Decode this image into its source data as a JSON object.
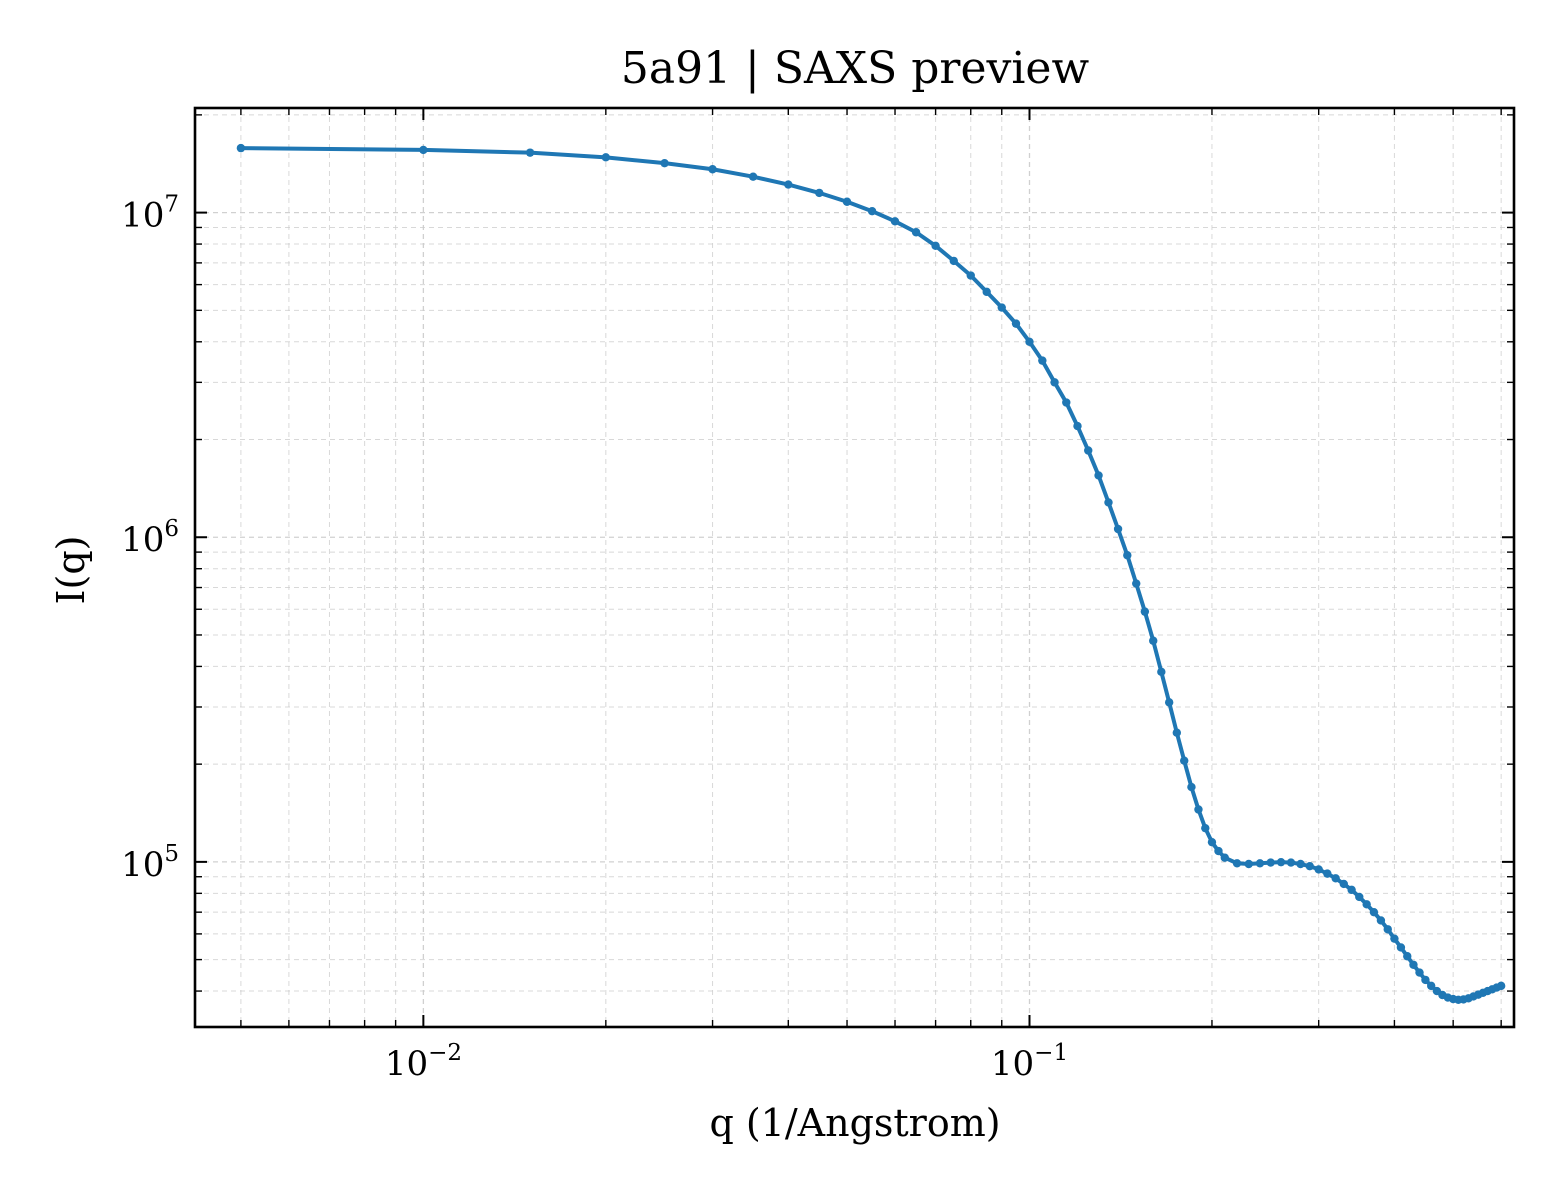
{
  "chart_data": {
    "type": "line",
    "title": "5a91 | SAXS preview",
    "xlabel": "q (1/Angstrom)",
    "ylabel": "I(q)",
    "x_scale": "log",
    "y_scale": "log",
    "xlim": [
      0.0042,
      0.63
    ],
    "ylim": [
      31000,
      21000000
    ],
    "grid": true,
    "legend": "none",
    "x_major_ticks": [
      {
        "value": 0.01,
        "base": "10",
        "exp": "−2"
      },
      {
        "value": 0.1,
        "base": "10",
        "exp": "−1"
      }
    ],
    "y_major_ticks": [
      {
        "value": 100000,
        "base": "10",
        "exp": "5"
      },
      {
        "value": 1000000,
        "base": "10",
        "exp": "6"
      },
      {
        "value": 10000000,
        "base": "10",
        "exp": "7"
      }
    ],
    "series": [
      {
        "color": "#1f77b4",
        "x": [
          0.005,
          0.01,
          0.015,
          0.02,
          0.025,
          0.03,
          0.035,
          0.04,
          0.045,
          0.05,
          0.055,
          0.06,
          0.065,
          0.07,
          0.075,
          0.08,
          0.085,
          0.09,
          0.095,
          0.1,
          0.105,
          0.11,
          0.115,
          0.12,
          0.125,
          0.13,
          0.135,
          0.14,
          0.145,
          0.15,
          0.155,
          0.16,
          0.165,
          0.17,
          0.175,
          0.18,
          0.185,
          0.19,
          0.195,
          0.2,
          0.205,
          0.21,
          0.22,
          0.23,
          0.24,
          0.25,
          0.26,
          0.27,
          0.28,
          0.29,
          0.3,
          0.31,
          0.32,
          0.33,
          0.34,
          0.35,
          0.36,
          0.37,
          0.38,
          0.39,
          0.4,
          0.41,
          0.42,
          0.43,
          0.44,
          0.45,
          0.46,
          0.47,
          0.48,
          0.49,
          0.5,
          0.51,
          0.52,
          0.53,
          0.54,
          0.55,
          0.56,
          0.57,
          0.58,
          0.59,
          0.6
        ],
        "y": [
          15800000,
          15600000,
          15300000,
          14800000,
          14200000,
          13600000,
          12900000,
          12200000,
          11500000,
          10800000,
          10100000,
          9400000,
          8700000,
          7900000,
          7100000,
          6400000,
          5700000,
          5100000,
          4550000,
          4000000,
          3500000,
          3000000,
          2600000,
          2200000,
          1850000,
          1550000,
          1280000,
          1060000,
          880000,
          720000,
          590000,
          480000,
          385000,
          310000,
          250000,
          205000,
          170000,
          145000,
          127000,
          115000,
          108000,
          103000,
          99000,
          98500,
          99000,
          99500,
          99800,
          99500,
          98500,
          97000,
          94800,
          92000,
          89000,
          85500,
          82000,
          78000,
          74000,
          70000,
          66000,
          62000,
          58000,
          54500,
          51200,
          48200,
          45600,
          43300,
          41500,
          40000,
          38900,
          38200,
          37800,
          37600,
          37700,
          38000,
          38500,
          39000,
          39500,
          40000,
          40500,
          41000,
          41500
        ]
      }
    ]
  }
}
